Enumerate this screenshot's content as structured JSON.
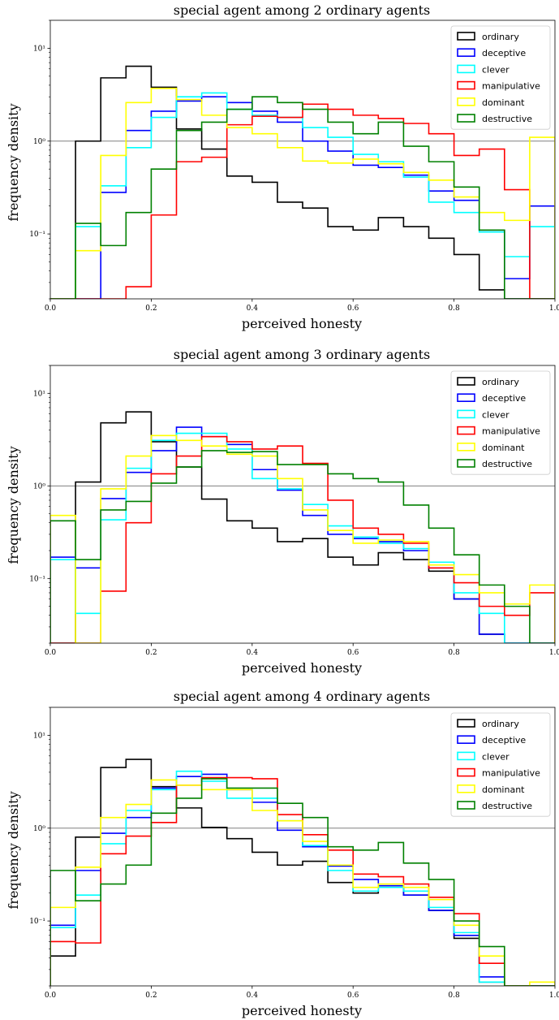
{
  "chart_data": [
    {
      "type": "histogram",
      "title": "special agent among 2 ordinary agents",
      "xlabel": "perceived honesty",
      "ylabel": "frequency density",
      "xlim": [
        0.0,
        1.0
      ],
      "ylim": [
        0.02,
        20
      ],
      "yscale": "log",
      "reference_line_y": 1.0,
      "x_ticks": [
        "0.0",
        "0.2",
        "0.4",
        "0.6",
        "0.8",
        "1.0"
      ],
      "y_ticks": [
        "10⁻¹",
        "10⁰",
        "10¹"
      ],
      "bin_edges": [
        0.0,
        0.05,
        0.1,
        0.15,
        0.2,
        0.25,
        0.3,
        0.35,
        0.4,
        0.45,
        0.5,
        0.55,
        0.6,
        0.65,
        0.7,
        0.75,
        0.8,
        0.85,
        0.9,
        0.95,
        1.0
      ],
      "legend_position": "upper right",
      "series": [
        {
          "name": "ordinary",
          "color": "#000000",
          "values": [
            0,
            1.0,
            4.8,
            6.4,
            3.8,
            1.35,
            0.82,
            0.42,
            0.36,
            0.22,
            0.19,
            0.12,
            0.11,
            0.15,
            0.12,
            0.09,
            0.06,
            0.025,
            0,
            0
          ]
        },
        {
          "name": "deceptive",
          "color": "#0000ff",
          "values": [
            0,
            0.02,
            0.28,
            1.3,
            2.1,
            2.7,
            3.0,
            2.6,
            2.1,
            1.6,
            1.0,
            0.78,
            0.55,
            0.52,
            0.43,
            0.29,
            0.23,
            0.11,
            0.033,
            0.2
          ]
        },
        {
          "name": "clever",
          "color": "#00ffff",
          "values": [
            0,
            0.12,
            0.33,
            0.85,
            1.8,
            3.0,
            3.3,
            2.2,
            1.9,
            1.8,
            1.4,
            1.1,
            0.72,
            0.6,
            0.41,
            0.22,
            0.17,
            0.105,
            0.057,
            0.12
          ]
        },
        {
          "name": "manipulative",
          "color": "#ff0000",
          "values": [
            0,
            0,
            0,
            0.027,
            0.16,
            0.6,
            0.67,
            1.5,
            1.85,
            1.8,
            2.5,
            2.2,
            1.9,
            1.75,
            1.55,
            1.2,
            0.7,
            0.82,
            0.3,
            0.02
          ]
        },
        {
          "name": "dominant",
          "color": "#ffff00",
          "values": [
            0,
            0.066,
            0.7,
            2.6,
            3.7,
            2.8,
            1.9,
            1.4,
            1.2,
            0.85,
            0.61,
            0.58,
            0.64,
            0.57,
            0.46,
            0.38,
            0.25,
            0.17,
            0.14,
            1.1
          ]
        },
        {
          "name": "destructive",
          "color": "#008000",
          "values": [
            0,
            0.13,
            0.075,
            0.17,
            0.5,
            1.3,
            1.6,
            2.2,
            3.0,
            2.6,
            2.2,
            1.6,
            1.2,
            1.6,
            0.88,
            0.6,
            0.32,
            0.11,
            0.02,
            0
          ]
        }
      ]
    },
    {
      "type": "histogram",
      "title": "special agent among 3 ordinary agents",
      "xlabel": "perceived honesty",
      "ylabel": "frequency density",
      "xlim": [
        0.0,
        1.0
      ],
      "ylim": [
        0.02,
        20
      ],
      "yscale": "log",
      "reference_line_y": 1.0,
      "x_ticks": [
        "0.0",
        "0.2",
        "0.4",
        "0.6",
        "0.8",
        "1.0"
      ],
      "y_ticks": [
        "10⁻¹",
        "10⁰",
        "10¹"
      ],
      "bin_edges": [
        0.0,
        0.05,
        0.1,
        0.15,
        0.2,
        0.25,
        0.3,
        0.35,
        0.4,
        0.45,
        0.5,
        0.55,
        0.6,
        0.65,
        0.7,
        0.75,
        0.8,
        0.85,
        0.9,
        0.95,
        1.0
      ],
      "legend_position": "upper right",
      "series": [
        {
          "name": "ordinary",
          "color": "#000000",
          "values": [
            0,
            1.1,
            4.8,
            6.3,
            3.0,
            1.6,
            0.72,
            0.42,
            0.35,
            0.25,
            0.27,
            0.17,
            0.14,
            0.19,
            0.16,
            0.12,
            0.06,
            0.025,
            0,
            0
          ]
        },
        {
          "name": "deceptive",
          "color": "#0000ff",
          "values": [
            0.17,
            0.13,
            0.73,
            1.4,
            2.4,
            4.3,
            3.4,
            2.8,
            1.5,
            0.9,
            0.48,
            0.3,
            0.27,
            0.25,
            0.2,
            0.13,
            0.06,
            0.025,
            0,
            0
          ]
        },
        {
          "name": "clever",
          "color": "#00ffff",
          "values": [
            0.16,
            0.042,
            0.43,
            1.55,
            3.1,
            3.7,
            3.7,
            2.5,
            1.2,
            0.93,
            0.63,
            0.37,
            0.28,
            0.24,
            0.21,
            0.15,
            0.07,
            0.042,
            0,
            0
          ]
        },
        {
          "name": "manipulative",
          "color": "#ff0000",
          "values": [
            0,
            0,
            0.073,
            0.4,
            1.35,
            2.1,
            3.4,
            3.0,
            2.5,
            2.7,
            1.75,
            0.7,
            0.35,
            0.3,
            0.24,
            0.13,
            0.09,
            0.05,
            0.04,
            0.07
          ]
        },
        {
          "name": "dominant",
          "color": "#ffff00",
          "values": [
            0.48,
            0,
            0.93,
            2.1,
            3.5,
            3.1,
            2.7,
            2.2,
            2.1,
            1.2,
            0.55,
            0.33,
            0.24,
            0.26,
            0.25,
            0.14,
            0.11,
            0.07,
            0.053,
            0.085
          ]
        },
        {
          "name": "destructive",
          "color": "#008000",
          "values": [
            0.42,
            0.16,
            0.55,
            0.68,
            1.07,
            1.6,
            2.4,
            2.3,
            2.35,
            1.7,
            1.7,
            1.35,
            1.2,
            1.1,
            0.62,
            0.35,
            0.18,
            0.085,
            0.05,
            0
          ]
        }
      ]
    },
    {
      "type": "histogram",
      "title": "special agent among 4 ordinary agents",
      "xlabel": "perceived honesty",
      "ylabel": "frequency density",
      "xlim": [
        0.0,
        1.0
      ],
      "ylim": [
        0.02,
        20
      ],
      "yscale": "log",
      "reference_line_y": 1.0,
      "x_ticks": [
        "0.0",
        "0.2",
        "0.4",
        "0.6",
        "0.8",
        "1.0"
      ],
      "y_ticks": [
        "10⁻¹",
        "10⁰",
        "10¹"
      ],
      "bin_edges": [
        0.0,
        0.05,
        0.1,
        0.15,
        0.2,
        0.25,
        0.3,
        0.35,
        0.4,
        0.45,
        0.5,
        0.55,
        0.6,
        0.65,
        0.7,
        0.75,
        0.8,
        0.85,
        0.9,
        0.95,
        1.0
      ],
      "legend_position": "upper right",
      "series": [
        {
          "name": "ordinary",
          "color": "#000000",
          "values": [
            0.042,
            0.8,
            4.5,
            5.5,
            2.8,
            1.65,
            1.02,
            0.77,
            0.55,
            0.4,
            0.44,
            0.26,
            0.2,
            0.23,
            0.19,
            0.13,
            0.065,
            0.022,
            0,
            0
          ]
        },
        {
          "name": "deceptive",
          "color": "#0000ff",
          "values": [
            0.09,
            0.35,
            0.88,
            1.3,
            2.7,
            3.6,
            3.8,
            2.6,
            1.9,
            0.95,
            0.63,
            0.39,
            0.28,
            0.24,
            0.19,
            0.13,
            0.07,
            0.025,
            0,
            0
          ]
        },
        {
          "name": "clever",
          "color": "#00ffff",
          "values": [
            0.085,
            0.19,
            0.68,
            1.55,
            2.6,
            4.1,
            3.2,
            2.1,
            2.1,
            1.2,
            0.65,
            0.35,
            0.21,
            0.23,
            0.21,
            0.14,
            0.075,
            0.022,
            0,
            0
          ]
        },
        {
          "name": "manipulative",
          "color": "#ff0000",
          "values": [
            0.06,
            0.058,
            0.53,
            0.82,
            1.15,
            2.9,
            3.5,
            3.5,
            3.4,
            1.4,
            0.85,
            0.58,
            0.32,
            0.3,
            0.25,
            0.18,
            0.12,
            0.035,
            0,
            0
          ]
        },
        {
          "name": "dominant",
          "color": "#ffff00",
          "values": [
            0.14,
            0.38,
            1.3,
            1.8,
            3.3,
            2.9,
            2.6,
            2.6,
            1.55,
            1.2,
            0.72,
            0.4,
            0.23,
            0.25,
            0.23,
            0.17,
            0.09,
            0.042,
            0,
            0.022
          ]
        },
        {
          "name": "destructive",
          "color": "#008000",
          "values": [
            0.35,
            0.165,
            0.25,
            0.4,
            1.45,
            2.1,
            3.4,
            2.7,
            2.7,
            1.85,
            1.3,
            0.63,
            0.58,
            0.7,
            0.42,
            0.28,
            0.1,
            0.053,
            0,
            0
          ]
        }
      ]
    }
  ]
}
